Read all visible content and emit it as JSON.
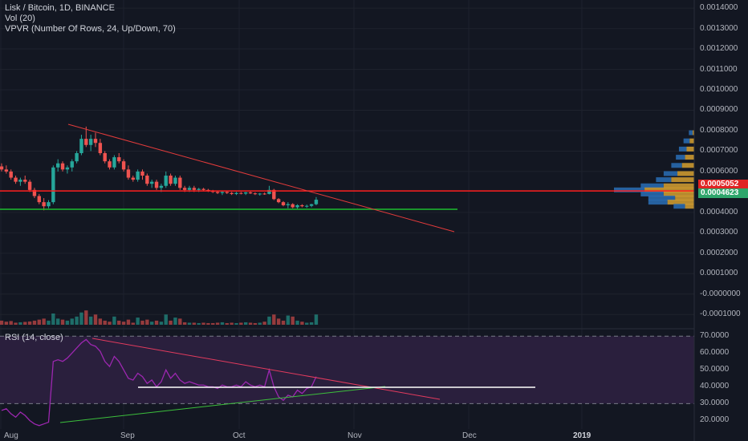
{
  "legend": {
    "symbol": "Lisk / Bitcoin, 1D, BINANCE",
    "volume": "Vol (20)",
    "vpvr": "VPVR (Number Of Rows, 24, Up/Down, 70)",
    "rsi": "RSI (14, close)"
  },
  "price_axis": [
    "0.0014000",
    "0.0013000",
    "0.0012000",
    "0.0011000",
    "0.0010000",
    "0.0009000",
    "0.0008000",
    "0.0007000",
    "0.0006000",
    "0.0004000",
    "0.0003000",
    "0.0002000",
    "0.0001000",
    "-0.0000000",
    "-0.0001000"
  ],
  "price_tags": {
    "resistance": "0.0005052",
    "last": "0.0004623"
  },
  "rsi_axis": [
    "70.0000",
    "60.0000",
    "50.0000",
    "40.0000",
    "30.0000",
    "20.0000"
  ],
  "time_axis": [
    "Aug",
    "Sep",
    "Oct",
    "Nov",
    "Dec",
    "2019"
  ],
  "colors": {
    "background": "#131722",
    "up": "#26a69a",
    "down": "#ef5350",
    "resistance": "#ff1f1f",
    "support": "#1cbd2e",
    "trend": "#e33b3b",
    "rsi_line": "#9c27b0",
    "rsi_band": "#2a1f3d",
    "vp_up": "#2a6fb6",
    "vp_down": "#d6a030",
    "tag_red": "#e02424",
    "tag_green": "#2ea66b"
  },
  "chart_data": {
    "type": "candlestick",
    "title": "Lisk / Bitcoin, 1D, BINANCE",
    "price_range": [
      -0.00015,
      0.00142
    ],
    "rsi_range": [
      15,
      72
    ],
    "horizontal_levels": {
      "resistance": 0.0005052,
      "support": 0.000415
    },
    "rsi_levels": [
      70,
      30
    ],
    "candles_ohlc": [
      [
        0.000625,
        0.00064,
        0.0006,
        0.00061
      ],
      [
        0.00061,
        0.00063,
        0.00059,
        0.0006
      ],
      [
        0.0006,
        0.00061,
        0.00056,
        0.00057
      ],
      [
        0.00057,
        0.00058,
        0.00054,
        0.00055
      ],
      [
        0.00055,
        0.00057,
        0.00053,
        0.00056
      ],
      [
        0.00056,
        0.00058,
        0.00054,
        0.00055
      ],
      [
        0.00055,
        0.00056,
        0.0005,
        0.00051
      ],
      [
        0.00051,
        0.00052,
        0.00047,
        0.00048
      ],
      [
        0.00048,
        0.00049,
        0.00044,
        0.00045
      ],
      [
        0.00045,
        0.00047,
        0.00041,
        0.00043
      ],
      [
        0.00043,
        0.00046,
        0.00042,
        0.00045
      ],
      [
        0.00045,
        0.00063,
        0.00044,
        0.00062
      ],
      [
        0.00062,
        0.00066,
        0.0006,
        0.00064
      ],
      [
        0.00064,
        0.00065,
        0.0006,
        0.00061
      ],
      [
        0.00061,
        0.00063,
        0.00059,
        0.00062
      ],
      [
        0.00062,
        0.00066,
        0.0006,
        0.00065
      ],
      [
        0.00065,
        0.0007,
        0.00064,
        0.00069
      ],
      [
        0.00069,
        0.00078,
        0.00068,
        0.00076
      ],
      [
        0.00076,
        0.00082,
        0.00072,
        0.00073
      ],
      [
        0.00073,
        0.00078,
        0.0007,
        0.00076
      ],
      [
        0.00076,
        0.00079,
        0.00072,
        0.00074
      ],
      [
        0.00074,
        0.00076,
        0.00068,
        0.00069
      ],
      [
        0.00069,
        0.0007,
        0.00064,
        0.00065
      ],
      [
        0.00065,
        0.00066,
        0.00061,
        0.00062
      ],
      [
        0.00062,
        0.00068,
        0.00061,
        0.00067
      ],
      [
        0.00067,
        0.00069,
        0.00064,
        0.00065
      ],
      [
        0.00065,
        0.00066,
        0.0006,
        0.00061
      ],
      [
        0.00061,
        0.00063,
        0.00056,
        0.00057
      ],
      [
        0.00057,
        0.00058,
        0.00055,
        0.00056
      ],
      [
        0.00056,
        0.00061,
        0.00055,
        0.0006
      ],
      [
        0.0006,
        0.00061,
        0.00056,
        0.00058
      ],
      [
        0.00058,
        0.00059,
        0.00053,
        0.00054
      ],
      [
        0.00054,
        0.00056,
        0.00052,
        0.00055
      ],
      [
        0.00055,
        0.00056,
        0.00051,
        0.00052
      ],
      [
        0.00052,
        0.00054,
        0.0005,
        0.00053
      ],
      [
        0.00053,
        0.0006,
        0.00052,
        0.00058
      ],
      [
        0.00058,
        0.00059,
        0.00053,
        0.00054
      ],
      [
        0.00054,
        0.00058,
        0.00053,
        0.00057
      ],
      [
        0.00057,
        0.00058,
        0.00051,
        0.00052
      ],
      [
        0.00052,
        0.00053,
        0.0005,
        0.00051
      ],
      [
        0.00051,
        0.00053,
        0.0005,
        0.00052
      ],
      [
        0.00052,
        0.00053,
        0.0005,
        0.00051
      ],
      [
        0.00051,
        0.00052,
        0.0005,
        0.000515
      ],
      [
        0.000515,
        0.00052,
        0.000505,
        0.00051
      ],
      [
        0.00051,
        0.000515,
        0.0005,
        0.000505
      ],
      [
        0.000505,
        0.00051,
        0.000495,
        0.0005
      ],
      [
        0.0005,
        0.000505,
        0.00049,
        0.000495
      ],
      [
        0.000495,
        0.000505,
        0.000485,
        0.0005
      ],
      [
        0.0005,
        0.000505,
        0.00049,
        0.000495
      ],
      [
        0.000495,
        0.0005,
        0.000485,
        0.00049
      ],
      [
        0.00049,
        0.0005,
        0.000485,
        0.000495
      ],
      [
        0.000495,
        0.0005,
        0.000488,
        0.000492
      ],
      [
        0.000492,
        0.0005,
        0.000485,
        0.000498
      ],
      [
        0.000498,
        0.000502,
        0.00049,
        0.000493
      ],
      [
        0.000493,
        0.000498,
        0.000485,
        0.00049
      ],
      [
        0.00049,
        0.000495,
        0.000482,
        0.000492
      ],
      [
        0.000492,
        0.000497,
        0.000486,
        0.00049
      ],
      [
        0.00049,
        0.00053,
        0.000488,
        0.00051
      ],
      [
        0.00051,
        0.000515,
        0.00046,
        0.000465
      ],
      [
        0.000465,
        0.00047,
        0.000445,
        0.00045
      ],
      [
        0.00045,
        0.000455,
        0.00043,
        0.000435
      ],
      [
        0.000435,
        0.00045,
        0.00042,
        0.00044
      ],
      [
        0.00044,
        0.000445,
        0.00042,
        0.000425
      ],
      [
        0.000425,
        0.00044,
        0.000418,
        0.000435
      ],
      [
        0.000435,
        0.00044,
        0.000425,
        0.00043
      ],
      [
        0.00043,
        0.000438,
        0.000422,
        0.000432
      ],
      [
        0.000432,
        0.000442,
        0.000425,
        0.00044
      ],
      [
        0.00044,
        0.000475,
        0.000435,
        0.000462
      ]
    ],
    "volume": [
      2e-05,
      1.5e-05,
      1.8e-05,
      1e-05,
      1.2e-05,
      1.4e-05,
      1.6e-05,
      2e-05,
      2.5e-05,
      3e-05,
      2e-05,
      5.5e-05,
      3e-05,
      2.5e-05,
      2e-05,
      3e-05,
      4e-05,
      6e-05,
      7e-05,
      4e-05,
      5e-05,
      3e-05,
      2e-05,
      1.5e-05,
      4e-05,
      2e-05,
      1.5e-05,
      2.5e-05,
      1e-05,
      3.5e-05,
      2e-05,
      2.5e-05,
      1.5e-05,
      2e-05,
      1.5e-05,
      5e-05,
      2e-05,
      3.5e-05,
      3e-05,
      1.2e-05,
      1e-05,
      1e-05,
      8e-06,
      1e-05,
      8e-06,
      8e-06,
      1e-05,
      1.2e-05,
      8e-06,
      1e-05,
      8e-06,
      1e-05,
      1.2e-05,
      1e-05,
      8e-06,
      1e-05,
      1.5e-05,
      4e-05,
      5e-05,
      3e-05,
      2e-05,
      4.5e-05,
      4e-05,
      2e-05,
      1.5e-05,
      1e-05,
      1.2e-05,
      5e-05
    ],
    "rsi": [
      26,
      27,
      24,
      22,
      25,
      23,
      20,
      18,
      17,
      18,
      19,
      55,
      56,
      55,
      57,
      60,
      63,
      66,
      68,
      65,
      64,
      61,
      55,
      52,
      58,
      55,
      50,
      45,
      44,
      48,
      46,
      42,
      44,
      40,
      43,
      50,
      45,
      48,
      44,
      42,
      43,
      42,
      41,
      41,
      40,
      40,
      39,
      41,
      40,
      40,
      41,
      40,
      43,
      41,
      40,
      41,
      40,
      50,
      40,
      34,
      32,
      35,
      34,
      38,
      36,
      39,
      40,
      46
    ],
    "vp_profile": [
      {
        "price": 0.00079,
        "up": 5e-06,
        "down": 2e-06
      },
      {
        "price": 0.00075,
        "up": 8e-06,
        "down": 6e-06
      },
      {
        "price": 0.00071,
        "up": 1e-05,
        "down": 1e-05
      },
      {
        "price": 0.00067,
        "up": 1.2e-05,
        "down": 1.2e-05
      },
      {
        "price": 0.00063,
        "up": 1.4e-05,
        "down": 1.6e-05
      },
      {
        "price": 0.00059,
        "up": 1.8e-05,
        "down": 2.2e-05
      },
      {
        "price": 0.00056,
        "up": 2e-05,
        "down": 3e-05
      },
      {
        "price": 0.00053,
        "up": 3e-05,
        "down": 4e-05
      },
      {
        "price": 0.00051,
        "up": 4e-05,
        "down": 6.5e-05
      },
      {
        "price": 0.00049,
        "up": 3e-05,
        "down": 4e-05
      },
      {
        "price": 0.00047,
        "up": 3.5e-05,
        "down": 2.5e-05
      },
      {
        "price": 0.00045,
        "up": 2.5e-05,
        "down": 3.5e-05
      },
      {
        "price": 0.00043,
        "up": 1.5e-05,
        "down": 1.2e-05
      }
    ]
  }
}
